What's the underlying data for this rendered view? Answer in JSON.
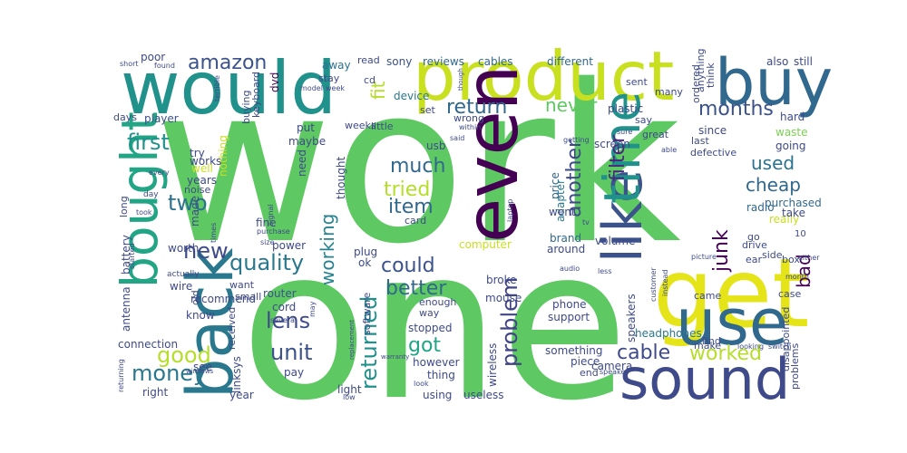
{
  "words": [
    {
      "text": "work",
      "color": "#5ec962"
    },
    {
      "text": "one",
      "color": "#5ec962"
    },
    {
      "text": "would",
      "color": "#21918c"
    },
    {
      "text": "product",
      "color": "#c8e020"
    },
    {
      "text": "buy",
      "color": "#31688e"
    },
    {
      "text": "get",
      "color": "#e5e419"
    },
    {
      "text": "use",
      "color": "#31688e"
    },
    {
      "text": "sound",
      "color": "#3e4a89"
    },
    {
      "text": "even",
      "color": "#440154"
    },
    {
      "text": "like",
      "color": "#3b528b"
    },
    {
      "text": "time",
      "color": "#21918c"
    },
    {
      "text": "back",
      "color": "#2a788e"
    },
    {
      "text": "bought",
      "color": "#21a585"
    },
    {
      "text": "amazon",
      "color": "#3b528b"
    },
    {
      "text": "first",
      "color": "#21918c"
    },
    {
      "text": "two",
      "color": "#2c728e"
    },
    {
      "text": "new",
      "color": "#3e4a89"
    },
    {
      "text": "good",
      "color": "#b5de2b"
    },
    {
      "text": "money",
      "color": "#2a788e"
    },
    {
      "text": "quality",
      "color": "#2a788e"
    },
    {
      "text": "unit",
      "color": "#3b528b"
    },
    {
      "text": "lens",
      "color": "#3e4a89"
    },
    {
      "text": "much",
      "color": "#31688e"
    },
    {
      "text": "tried",
      "color": "#b5de2b"
    },
    {
      "text": "item",
      "color": "#31688e"
    },
    {
      "text": "could",
      "color": "#3b528b"
    },
    {
      "text": "better",
      "color": "#31688e"
    },
    {
      "text": "got",
      "color": "#21a585"
    },
    {
      "text": "returned",
      "color": "#21918c"
    },
    {
      "text": "problem",
      "color": "#414487"
    },
    {
      "text": "return",
      "color": "#31688e"
    },
    {
      "text": "never",
      "color": "#5ec962"
    },
    {
      "text": "another",
      "color": "#3e4a89"
    },
    {
      "text": "filter",
      "color": "#482878"
    },
    {
      "text": "months",
      "color": "#3b528b"
    },
    {
      "text": "junk",
      "color": "#440154"
    },
    {
      "text": "cable",
      "color": "#3e4a89"
    },
    {
      "text": "worked",
      "color": "#b5de2b"
    },
    {
      "text": "used",
      "color": "#2c728e"
    },
    {
      "text": "cheap",
      "color": "#31688e"
    },
    {
      "text": "bad",
      "color": "#440154"
    },
    {
      "text": "fit",
      "color": "#b5de2b"
    },
    {
      "text": "working",
      "color": "#26828e"
    },
    {
      "text": "reviews",
      "color": "#31688e"
    },
    {
      "text": "cables",
      "color": "#31688e"
    },
    {
      "text": "different",
      "color": "#31688e"
    },
    {
      "text": "sony",
      "color": "#3b528b"
    },
    {
      "text": "device",
      "color": "#2a788e"
    },
    {
      "text": "plastic",
      "color": "#3e4a89"
    },
    {
      "text": "poor",
      "color": "#3e4a89"
    },
    {
      "text": "away",
      "color": "#2c728e"
    },
    {
      "text": "player",
      "color": "#3b528b"
    },
    {
      "text": "dvd",
      "color": "#440154"
    },
    {
      "text": "power",
      "color": "#3e4a89"
    },
    {
      "text": "also",
      "color": "#3e4a89"
    },
    {
      "text": "still",
      "color": "#3e4a89"
    },
    {
      "text": "hard",
      "color": "#3e4a89"
    },
    {
      "text": "since",
      "color": "#3e4a89"
    },
    {
      "text": "going",
      "color": "#3e4a89"
    },
    {
      "text": "waste",
      "color": "#7ad151"
    },
    {
      "text": "radio",
      "color": "#31688e"
    },
    {
      "text": "purchased",
      "color": "#31688e"
    },
    {
      "text": "really",
      "color": "#c8e020"
    },
    {
      "text": "take",
      "color": "#3e4a89"
    },
    {
      "text": "screen",
      "color": "#3e4a89"
    },
    {
      "text": "usb",
      "color": "#3e4a89"
    },
    {
      "text": "price",
      "color": "#31688e"
    },
    {
      "text": "adapter",
      "color": "#2a788e"
    },
    {
      "text": "computer",
      "color": "#c8e020"
    },
    {
      "text": "brand",
      "color": "#31688e"
    },
    {
      "text": "went",
      "color": "#3e4a89"
    },
    {
      "text": "volume",
      "color": "#3e4a89"
    },
    {
      "text": "around",
      "color": "#3e4a89"
    },
    {
      "text": "broke",
      "color": "#3e4a89"
    },
    {
      "text": "mouse",
      "color": "#3e4a89"
    },
    {
      "text": "router",
      "color": "#3b528b"
    },
    {
      "text": "cord",
      "color": "#3e4a89"
    },
    {
      "text": "phone",
      "color": "#3e4a89"
    },
    {
      "text": "support",
      "color": "#3e4a89"
    },
    {
      "text": "stopped",
      "color": "#3e4a89"
    },
    {
      "text": "headphones",
      "color": "#2a788e"
    },
    {
      "text": "speakers",
      "color": "#3e4a89"
    },
    {
      "text": "something",
      "color": "#3e4a89"
    },
    {
      "text": "wireless",
      "color": "#3e4a89"
    },
    {
      "text": "however",
      "color": "#3e4a89"
    },
    {
      "text": "thing",
      "color": "#3e4a89"
    },
    {
      "text": "using",
      "color": "#3e4a89"
    },
    {
      "text": "useless",
      "color": "#3e4a89"
    },
    {
      "text": "camera",
      "color": "#3e4a89"
    },
    {
      "text": "piece",
      "color": "#3e4a89"
    },
    {
      "text": "linksys",
      "color": "#3e4a89"
    },
    {
      "text": "light",
      "color": "#3e4a89"
    },
    {
      "text": "year",
      "color": "#3e4a89"
    },
    {
      "text": "pay",
      "color": "#3e4a89"
    },
    {
      "text": "right",
      "color": "#3e4a89"
    },
    {
      "text": "see",
      "color": "#3e4a89"
    },
    {
      "text": "wire",
      "color": "#3e4a89"
    },
    {
      "text": "worth",
      "color": "#3e4a89"
    },
    {
      "text": "antenna",
      "color": "#3e4a89"
    },
    {
      "text": "battery",
      "color": "#3e4a89"
    },
    {
      "text": "connection",
      "color": "#3e4a89"
    },
    {
      "text": "know",
      "color": "#3e4a89"
    },
    {
      "text": "recommend",
      "color": "#3e4a89"
    },
    {
      "text": "ok",
      "color": "#3e4a89"
    },
    {
      "text": "plug",
      "color": "#3e4a89"
    },
    {
      "text": "fine",
      "color": "#3e4a89"
    },
    {
      "text": "put",
      "color": "#3e4a89"
    },
    {
      "text": "thought",
      "color": "#3e4a89"
    },
    {
      "text": "need",
      "color": "#3e4a89"
    },
    {
      "text": "maybe",
      "color": "#3e4a89"
    },
    {
      "text": "made",
      "color": "#3e4a89"
    },
    {
      "text": "nothing",
      "color": "#c8e020"
    },
    {
      "text": "try",
      "color": "#3e4a89"
    },
    {
      "text": "works",
      "color": "#3e4a89"
    },
    {
      "text": "well",
      "color": "#c8e020"
    },
    {
      "text": "years",
      "color": "#3e4a89"
    },
    {
      "text": "noise",
      "color": "#3e4a89"
    },
    {
      "text": "days",
      "color": "#3e4a89"
    },
    {
      "text": "buying",
      "color": "#3e4a89"
    },
    {
      "text": "keyboard",
      "color": "#3e4a89"
    },
    {
      "text": "stay",
      "color": "#3e4a89"
    },
    {
      "text": "read",
      "color": "#3e4a89"
    },
    {
      "text": "cd",
      "color": "#3e4a89"
    },
    {
      "text": "weeks",
      "color": "#3e4a89"
    },
    {
      "text": "little",
      "color": "#3e4a89"
    },
    {
      "text": "set",
      "color": "#3e4a89"
    },
    {
      "text": "wrong",
      "color": "#3e4a89"
    },
    {
      "text": "card",
      "color": "#3e4a89"
    },
    {
      "text": "want",
      "color": "#3e4a89"
    },
    {
      "text": "small",
      "color": "#3e4a89"
    },
    {
      "text": "old",
      "color": "#3e4a89"
    },
    {
      "text": "received",
      "color": "#3e4a89"
    },
    {
      "text": "software",
      "color": "#3e4a89"
    },
    {
      "text": "enough",
      "color": "#3e4a89"
    },
    {
      "text": "way",
      "color": "#3e4a89"
    },
    {
      "text": "sent",
      "color": "#3e4a89"
    },
    {
      "text": "ordered",
      "color": "#3e4a89"
    },
    {
      "text": "anything",
      "color": "#3e4a89"
    },
    {
      "text": "think",
      "color": "#3e4a89"
    },
    {
      "text": "many",
      "color": "#3e4a89"
    },
    {
      "text": "great",
      "color": "#3e4a89"
    },
    {
      "text": "say",
      "color": "#3e4a89"
    },
    {
      "text": "last",
      "color": "#3e4a89"
    },
    {
      "text": "defective",
      "color": "#3e4a89"
    },
    {
      "text": "go",
      "color": "#3e4a89"
    },
    {
      "text": "drive",
      "color": "#3e4a89"
    },
    {
      "text": "ear",
      "color": "#3e4a89"
    },
    {
      "text": "side",
      "color": "#3e4a89"
    },
    {
      "text": "box",
      "color": "#3e4a89"
    },
    {
      "text": "came",
      "color": "#3e4a89"
    },
    {
      "text": "case",
      "color": "#3e4a89"
    },
    {
      "text": "find",
      "color": "#3e4a89"
    },
    {
      "text": "make",
      "color": "#3e4a89"
    },
    {
      "text": "end",
      "color": "#3e4a89"
    },
    {
      "text": "disappointed",
      "color": "#3e4a89"
    },
    {
      "text": "problems",
      "color": "#3e4a89"
    },
    {
      "text": "short",
      "color": "#3e4a89"
    },
    {
      "text": "found",
      "color": "#3e4a89"
    },
    {
      "text": "long",
      "color": "#3e4a89"
    },
    {
      "text": "day",
      "color": "#3e4a89"
    },
    {
      "text": "took",
      "color": "#3e4a89"
    },
    {
      "text": "every",
      "color": "#3e4a89"
    },
    {
      "text": "times",
      "color": "#3e4a89"
    },
    {
      "text": "signal",
      "color": "#3e4a89"
    },
    {
      "text": "purchase",
      "color": "#3e4a89"
    },
    {
      "text": "size",
      "color": "#3e4a89"
    },
    {
      "text": "started",
      "color": "#3e4a89"
    },
    {
      "text": "actually",
      "color": "#3e4a89"
    },
    {
      "text": "windows",
      "color": "#3e4a89"
    },
    {
      "text": "returning",
      "color": "#3e4a89"
    },
    {
      "text": "several",
      "color": "#3e4a89"
    },
    {
      "text": "low",
      "color": "#3e4a89"
    },
    {
      "text": "may",
      "color": "#3e4a89"
    },
    {
      "text": "replacement",
      "color": "#3e4a89"
    },
    {
      "text": "warranty",
      "color": "#3e4a89"
    },
    {
      "text": "look",
      "color": "#3e4a89"
    },
    {
      "text": "said",
      "color": "#3e4a89"
    },
    {
      "text": "within",
      "color": "#3e4a89"
    },
    {
      "text": "though",
      "color": "#3e4a89"
    },
    {
      "text": "sure",
      "color": "#3e4a89"
    },
    {
      "text": "getting",
      "color": "#3e4a89"
    },
    {
      "text": "able",
      "color": "#3e4a89"
    },
    {
      "text": "tv",
      "color": "#3e4a89"
    },
    {
      "text": "laptop",
      "color": "#3e4a89"
    },
    {
      "text": "audio",
      "color": "#3e4a89"
    },
    {
      "text": "less",
      "color": "#3e4a89"
    },
    {
      "text": "customer",
      "color": "#3e4a89"
    },
    {
      "text": "instead",
      "color": "#3e4a89"
    },
    {
      "text": "picture",
      "color": "#3e4a89"
    },
    {
      "text": "month",
      "color": "#3e4a89"
    },
    {
      "text": "either",
      "color": "#3e4a89"
    },
    {
      "text": "10",
      "color": "#3e4a89"
    },
    {
      "text": "looking",
      "color": "#3e4a89"
    },
    {
      "text": "switch",
      "color": "#3e4a89"
    },
    {
      "text": "speaker",
      "color": "#3e4a89"
    },
    {
      "text": "terrible",
      "color": "#3e4a89"
    },
    {
      "text": "model",
      "color": "#3e4a89"
    },
    {
      "text": "week",
      "color": "#3e4a89"
    }
  ]
}
